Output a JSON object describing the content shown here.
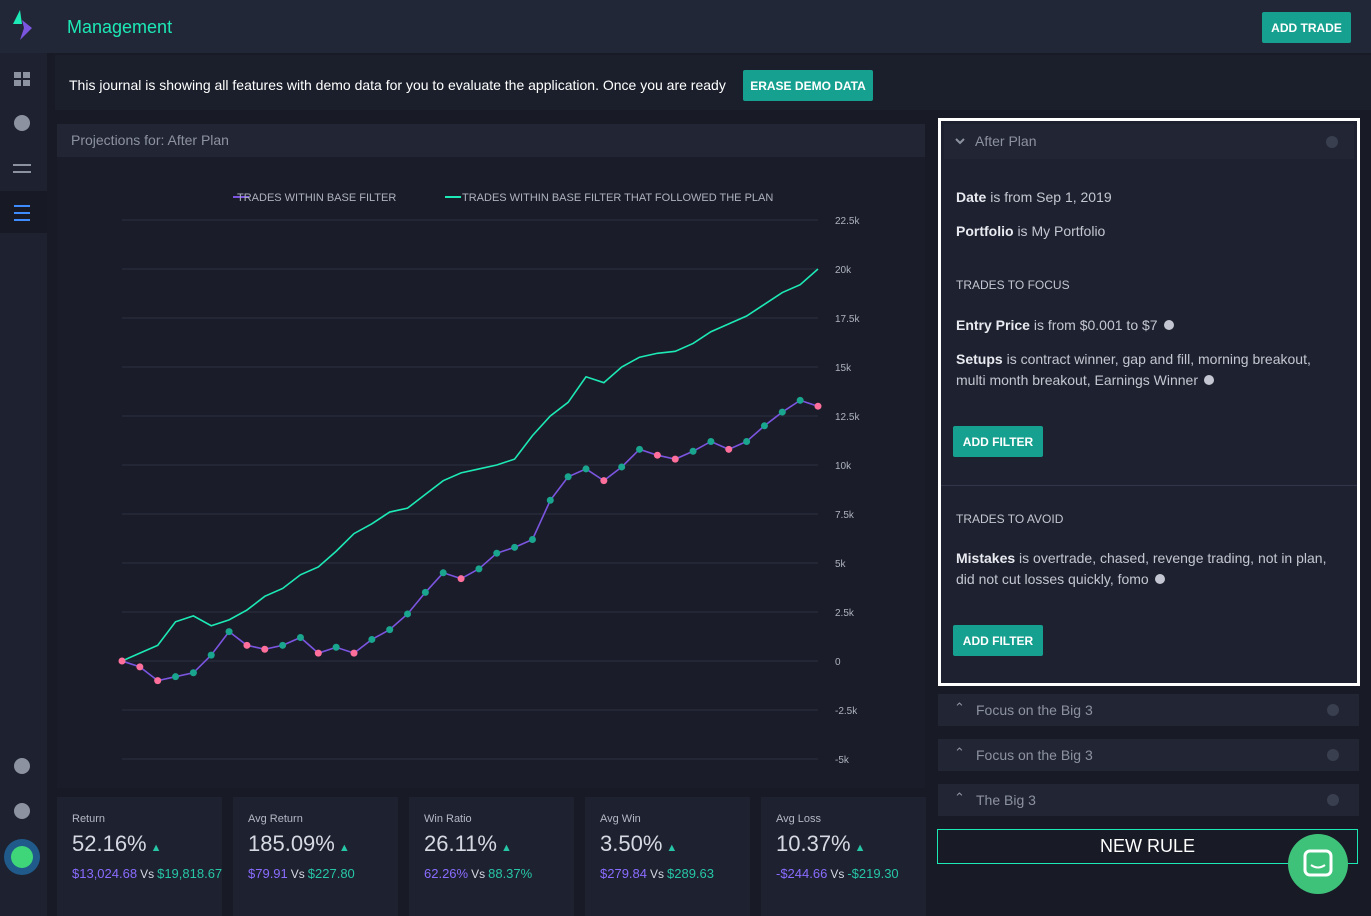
{
  "header": {
    "title": "Management",
    "add_trade": "ADD TRADE"
  },
  "banner": {
    "text": "This journal is showing all features with demo data for you to evaluate the application. Once you are ready",
    "button": "ERASE DEMO DATA"
  },
  "panel_title": "Projections for: After Plan",
  "chart_data": {
    "type": "line",
    "legend_position": "top",
    "grid": true,
    "ylim": [
      -5000,
      22500
    ],
    "yticks": [
      {
        "value": -5000,
        "label": "-5k"
      },
      {
        "value": -2500,
        "label": "-2.5k"
      },
      0,
      {
        "value": 2500,
        "label": "2.5k"
      },
      {
        "value": 5000,
        "label": "5k"
      },
      {
        "value": 7500,
        "label": "7.5k"
      },
      {
        "value": 10000,
        "label": "10k"
      },
      {
        "value": 12500,
        "label": "12.5k"
      },
      {
        "value": 15000,
        "label": "15k"
      },
      {
        "value": 17500,
        "label": "17.5k"
      },
      {
        "value": 20000,
        "label": "20k"
      },
      {
        "value": 22500,
        "label": "22.5k"
      }
    ],
    "up_color": "#1aa58f",
    "down_color": "#ff6f9c",
    "series": [
      {
        "name": "TRADES WITHIN BASE FILTER",
        "color": "#7b55e0",
        "markers": true,
        "values": [
          0,
          -300,
          -1000,
          -800,
          -600,
          300,
          1500,
          800,
          600,
          800,
          1200,
          400,
          700,
          400,
          1100,
          1600,
          2400,
          3500,
          4500,
          4200,
          4700,
          5500,
          5800,
          6200,
          8200,
          9400,
          9800,
          9200,
          9900,
          10800,
          10500,
          10300,
          10700,
          11200,
          10800,
          11200,
          12000,
          12700,
          13300,
          13000
        ]
      },
      {
        "name": "TRADES WITHIN BASE FILTER THAT FOLLOWED THE PLAN",
        "color": "#1de9b6",
        "markers": false,
        "values": [
          0,
          400,
          800,
          2000,
          2300,
          1800,
          2100,
          2600,
          3300,
          3700,
          4400,
          4800,
          5600,
          6500,
          7000,
          7600,
          7800,
          8500,
          9200,
          9600,
          9800,
          10000,
          10300,
          11500,
          12500,
          13200,
          14500,
          14200,
          15000,
          15500,
          15700,
          15800,
          16200,
          16800,
          17200,
          17600,
          18200,
          18800,
          19200,
          20000
        ]
      }
    ]
  },
  "stats": {
    "vs": "Vs",
    "cards": [
      {
        "label": "Return",
        "value": "52.16%",
        "a": "$13,024.68",
        "b": "$19,818.67"
      },
      {
        "label": "Avg Return",
        "value": "185.09%",
        "a": "$79.91",
        "b": "$227.80"
      },
      {
        "label": "Win Ratio",
        "value": "26.11%",
        "a": "62.26%",
        "b": "88.37%"
      },
      {
        "label": "Avg Win",
        "value": "3.50%",
        "a": "$279.84",
        "b": "$289.63"
      },
      {
        "label": "Avg Loss",
        "value": "10.37%",
        "a": "-$244.66",
        "b": "-$219.30"
      }
    ]
  },
  "rule": {
    "title": "After Plan",
    "conditions": [
      {
        "label": "Date",
        "text": "is from Sep 1, 2019"
      },
      {
        "label": "Portfolio",
        "text": "is My Portfolio"
      }
    ],
    "focus_heading": "TRADES TO FOCUS",
    "focus": [
      {
        "label": "Entry Price",
        "text": "is from $0.001 to $7"
      },
      {
        "label": "Setups",
        "text": "is contract winner, gap and fill, morning breakout, multi month breakout, Earnings Winner"
      }
    ],
    "focus_button": "ADD FILTER",
    "avoid_heading": "TRADES TO AVOID",
    "avoid": [
      {
        "label": "Mistakes",
        "text": "is overtrade, chased, revenge trading, not in plan, did not cut losses quickly, fomo"
      }
    ],
    "avoid_button": "ADD FILTER"
  },
  "other_rules": [
    "Focus on the Big 3",
    "Focus on the Big 3",
    "The Big 3"
  ],
  "new_rule": "NEW RULE"
}
